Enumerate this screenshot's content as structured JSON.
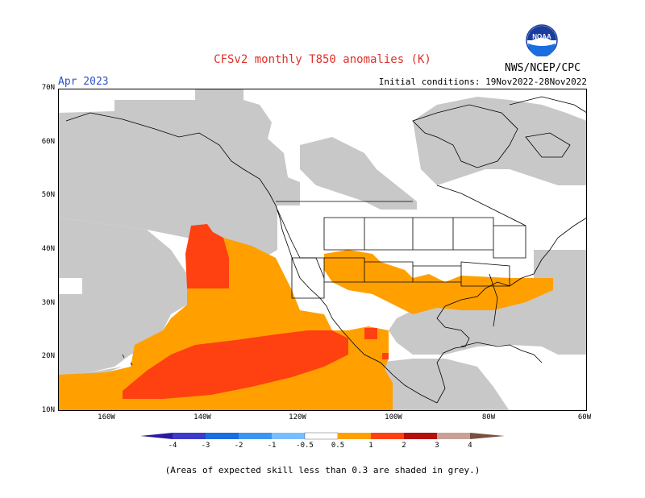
{
  "header": {
    "title": "CFSv2 monthly T850 anomalies (K)",
    "month": "Apr 2023",
    "initial_conditions": "Initial conditions: 19Nov2022-28Nov2022",
    "agency": "NWS/NCEP/CPC",
    "logo_text": "NOAA"
  },
  "map": {
    "lat_labels": [
      "70N",
      "60N",
      "50N",
      "40N",
      "30N",
      "20N",
      "10N"
    ],
    "lon_labels": [
      "160W",
      "140W",
      "120W",
      "100W",
      "80W",
      "60W"
    ],
    "colors": {
      "grey": "#c8c8c8",
      "orange": "#ffa000",
      "red_orange": "#ff4010",
      "land_line": "#000000"
    }
  },
  "legend": {
    "labels": [
      "-4",
      "-3",
      "-2",
      "-1",
      "-0.5",
      "0.5",
      "1",
      "2",
      "3",
      "4"
    ],
    "colors": [
      "#2a1aa0",
      "#3c3cc8",
      "#1a6ee0",
      "#3c96f0",
      "#78beff",
      "#ffffff",
      "#ffa000",
      "#ff4010",
      "#b41010",
      "#c8a096",
      "#785040"
    ]
  },
  "footnote": "(Areas of expected skill less than 0.3 are shaded in grey.)"
}
